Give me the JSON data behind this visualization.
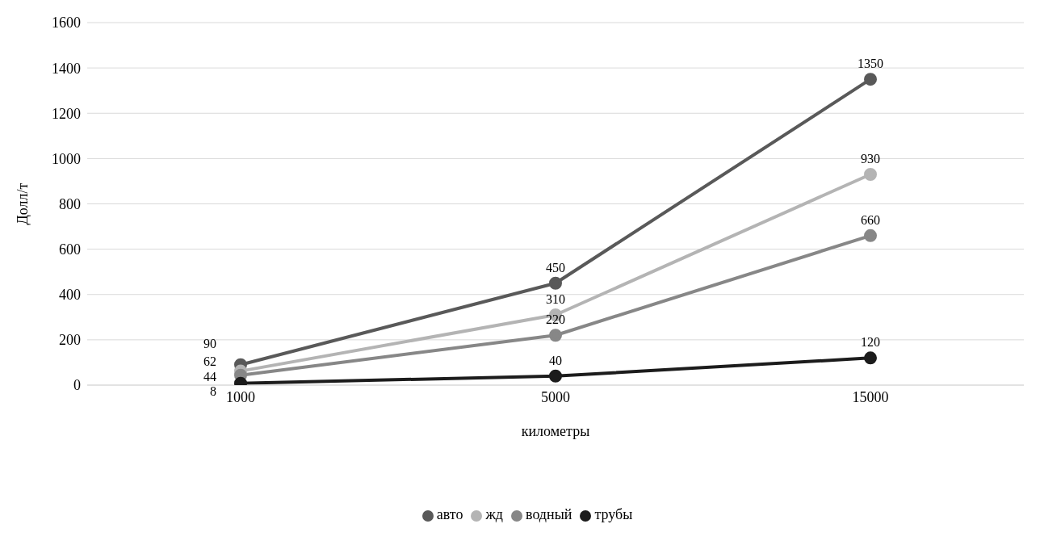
{
  "chart_data": {
    "type": "line",
    "xlabel": "километры",
    "ylabel": "Долл/т",
    "categories": [
      "1000",
      "5000",
      "15000"
    ],
    "series": [
      {
        "name": "авто",
        "color": "#595959",
        "values": [
          90,
          450,
          1350
        ]
      },
      {
        "name": "жд",
        "color": "#b4b4b4",
        "values": [
          62,
          310,
          930
        ]
      },
      {
        "name": "водный",
        "color": "#878787",
        "values": [
          44,
          220,
          660
        ]
      },
      {
        "name": "трубы",
        "color": "#1c1c1c",
        "values": [
          8,
          40,
          120
        ]
      }
    ],
    "ylim": [
      0,
      1600
    ],
    "yticks": [
      0,
      200,
      400,
      600,
      800,
      1000,
      1200,
      1400,
      1600
    ],
    "grid": "y",
    "legend": "bottom",
    "marker": "circle",
    "line_style": "solid",
    "data_labels": true
  }
}
